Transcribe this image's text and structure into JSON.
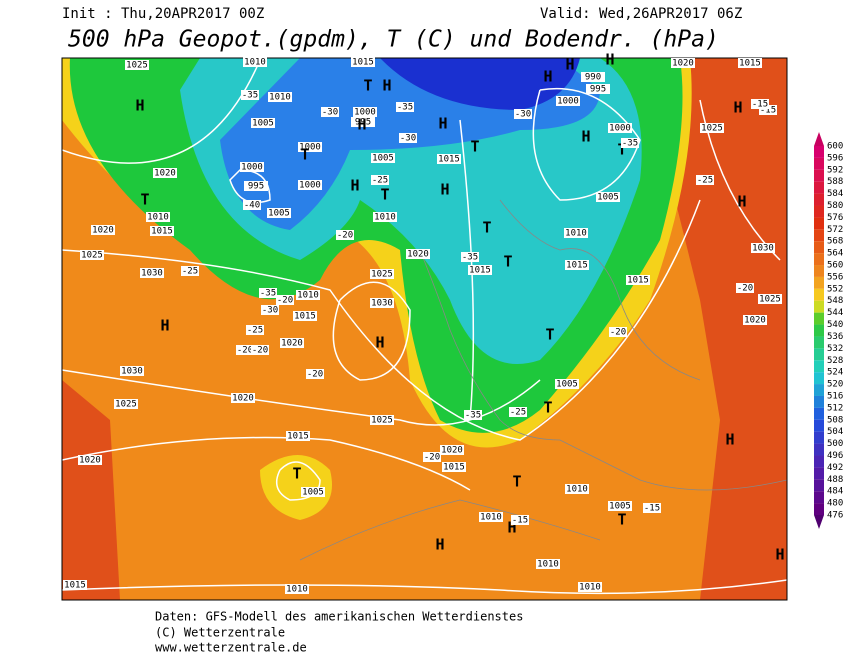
{
  "header": {
    "init": "Init : Thu,20APR2017 00Z",
    "valid": "Valid: Wed,26APR2017 06Z",
    "title": "500 hPa Geopot.(gpdm), T (C) und Bodendr. (hPa)"
  },
  "footer": [
    "Daten: GFS-Modell des amerikanischen Wetterdienstes",
    "(C) Wetterzentrale",
    "www.wetterzentrale.de"
  ],
  "colorbar": {
    "labels": [
      600,
      596,
      592,
      588,
      584,
      580,
      576,
      572,
      568,
      564,
      560,
      556,
      552,
      548,
      544,
      540,
      536,
      532,
      528,
      524,
      520,
      516,
      512,
      508,
      504,
      500,
      496,
      492,
      488,
      484,
      480,
      476
    ]
  },
  "map_labels": [
    "1025",
    "1010",
    "1015",
    "1010",
    "1000",
    "995",
    "1005",
    "1000",
    "1005",
    "1000",
    "995",
    "1000",
    "1005",
    "1020",
    "1010",
    "1015",
    "1020",
    "1025",
    "1030",
    "1010",
    "1020",
    "1025",
    "1030",
    "1010",
    "1015",
    "1020",
    "1015",
    "1015",
    "1010",
    "1015",
    "1005",
    "1000",
    "1000",
    "990",
    "995",
    "1015",
    "1020",
    "1015",
    "1025",
    "1030",
    "1025",
    "1020",
    "1030",
    "1025",
    "1020",
    "1025",
    "1015",
    "1005",
    "1020",
    "1020",
    "1015",
    "1005",
    "1010",
    "1010",
    "1005",
    "1010",
    "1015",
    "1010",
    "1010",
    "H",
    "H",
    "H",
    "H",
    "H",
    "H",
    "H",
    "H",
    "H",
    "H",
    "H",
    "H",
    "H",
    "H",
    "H",
    "H",
    "H",
    "H",
    "T",
    "T",
    "T",
    "T",
    "T",
    "T",
    "T",
    "T",
    "T",
    "T",
    "T",
    "T",
    "T",
    "-35",
    "-30",
    "-35",
    "-30",
    "-35",
    "-40",
    "-25",
    "-30",
    "-20",
    "-25",
    "-35",
    "-30",
    "-25",
    "-20",
    "-20",
    "-20",
    "-35",
    "-35",
    "-25",
    "-20",
    "-20",
    "-15",
    "-15",
    "-15",
    "-15",
    "-20",
    "-20",
    "-25"
  ]
}
